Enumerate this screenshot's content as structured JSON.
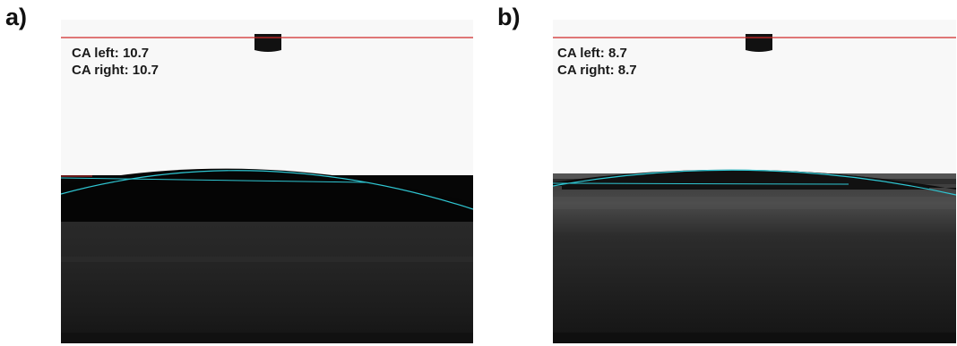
{
  "panels": [
    {
      "letter": "a)",
      "ca_left": "CA left: 10.7",
      "ca_right": "CA right: 10.7"
    },
    {
      "letter": "b)",
      "ca_left": "CA left: 8.7",
      "ca_right": "CA right: 8.7"
    }
  ],
  "colors": {
    "baseline": "#d02a2a",
    "fit_line": "#2fc6d2",
    "background": "#f8f8f8",
    "substrate_dark": "#0b0b0b"
  }
}
